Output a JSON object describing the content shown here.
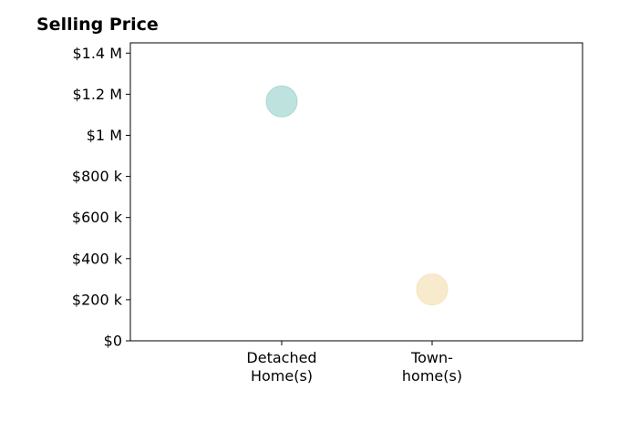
{
  "chart_data": {
    "type": "scatter",
    "title": "Selling Price",
    "xlabel": "",
    "ylabel": "",
    "categories": [
      [
        "Detached",
        "Home(s)"
      ],
      [
        "Town-",
        "home(s)"
      ]
    ],
    "points": [
      {
        "category_index": 0,
        "value": 1165000,
        "color": "#a8d9d3"
      },
      {
        "category_index": 1,
        "value": 250000,
        "color": "#f5e3bb"
      }
    ],
    "ylim": [
      0,
      1450000
    ],
    "y_ticks": [
      {
        "value": 0,
        "label": "$0"
      },
      {
        "value": 200000,
        "label": "$200 k"
      },
      {
        "value": 400000,
        "label": "$400 k"
      },
      {
        "value": 600000,
        "label": "$600 k"
      },
      {
        "value": 800000,
        "label": "$800 k"
      },
      {
        "value": 1000000,
        "label": "$1 M"
      },
      {
        "value": 1200000,
        "label": "$1.2 M"
      },
      {
        "value": 1400000,
        "label": "$1.4 M"
      }
    ],
    "grid": false,
    "legend": "none"
  }
}
